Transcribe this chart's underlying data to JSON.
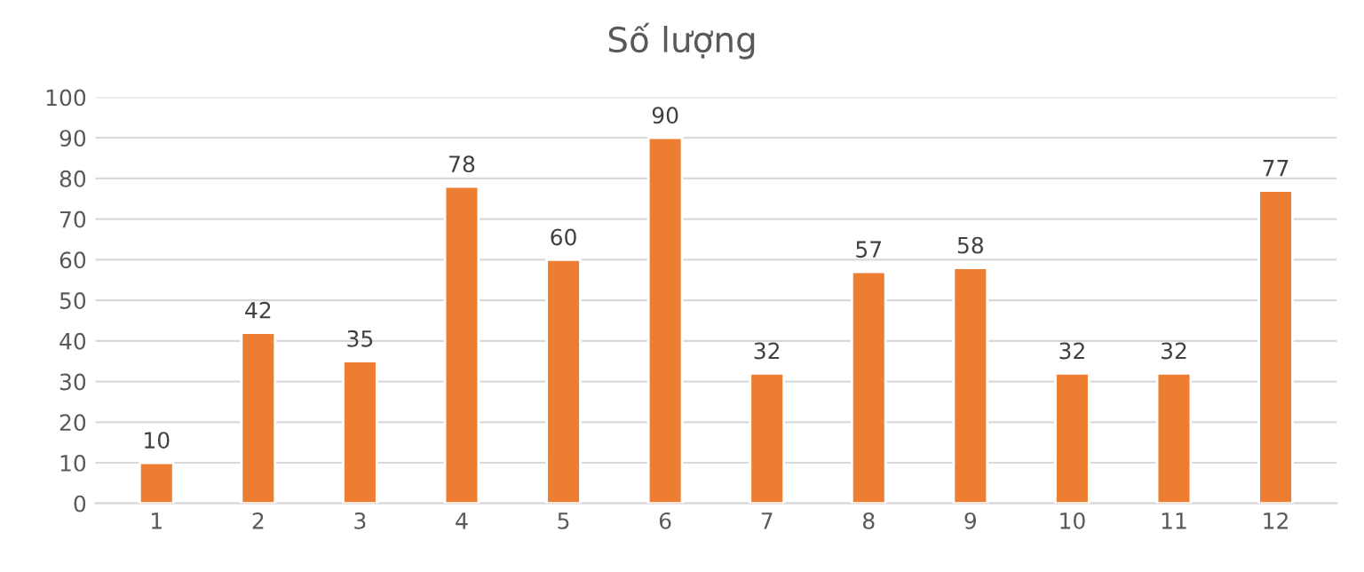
{
  "chart_data": {
    "type": "bar",
    "title": "Số lượng",
    "categories": [
      "1",
      "2",
      "3",
      "4",
      "5",
      "6",
      "7",
      "8",
      "9",
      "10",
      "11",
      "12"
    ],
    "values": [
      10,
      42,
      35,
      78,
      60,
      90,
      32,
      57,
      58,
      32,
      32,
      77
    ],
    "color": "#ed7d31",
    "ylim": [
      0,
      100
    ],
    "yticks": [
      0,
      10,
      20,
      30,
      40,
      50,
      60,
      70,
      80,
      90,
      100
    ],
    "grid": "y",
    "data_labels": true
  }
}
